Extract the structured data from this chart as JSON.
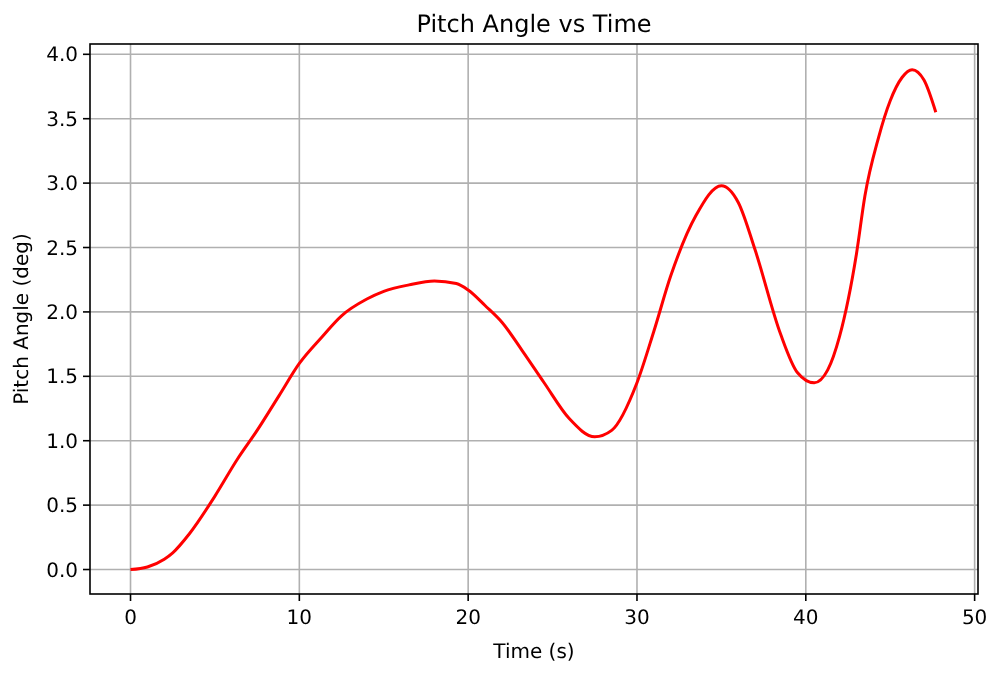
{
  "chart_data": {
    "type": "line",
    "title": "Pitch Angle vs Time",
    "xlabel": "Time (s)",
    "ylabel": "Pitch Angle (deg)",
    "xlim": [
      -2.4,
      50.2
    ],
    "ylim": [
      -0.19,
      4.08
    ],
    "xticks": [
      0,
      10,
      20,
      30,
      40,
      50
    ],
    "yticks": [
      {
        "value": 0,
        "label": "0.0"
      },
      {
        "value": 0.5,
        "label": "0.5"
      },
      {
        "value": 1,
        "label": "1.0"
      },
      {
        "value": 1.5,
        "label": "1.5"
      },
      {
        "value": 2,
        "label": "2.0"
      },
      {
        "value": 2.5,
        "label": "2.5"
      },
      {
        "value": 3,
        "label": "3.0"
      },
      {
        "value": 3.5,
        "label": "3.5"
      },
      {
        "value": 4,
        "label": "4.0"
      }
    ],
    "grid": true,
    "x": [
      0,
      1,
      2,
      2.5,
      3.5,
      5,
      6.3,
      7.5,
      8.8,
      10,
      11.3,
      12.5,
      14,
      15,
      16.5,
      18,
      19.3,
      20,
      21,
      22,
      23.2,
      24.5,
      26,
      27.5,
      28.5,
      30,
      31,
      32,
      33.5,
      35,
      36,
      37,
      38.5,
      39.5,
      40.5,
      41.3,
      42,
      43,
      43.5,
      44.3,
      45,
      45.7,
      46.3,
      47,
      47.7
    ],
    "series": [
      {
        "color": "#ff0000",
        "values": [
          0,
          0.02,
          0.08,
          0.13,
          0.28,
          0.57,
          0.85,
          1.08,
          1.35,
          1.6,
          1.8,
          1.97,
          2.1,
          2.16,
          2.21,
          2.24,
          2.22,
          2.17,
          2.05,
          1.92,
          1.7,
          1.45,
          1.17,
          1.03,
          1.08,
          1.45,
          1.85,
          2.28,
          2.75,
          2.98,
          2.85,
          2.48,
          1.83,
          1.53,
          1.45,
          1.55,
          1.81,
          2.45,
          2.9,
          3.35,
          3.64,
          3.82,
          3.88,
          3.8,
          3.55
        ]
      }
    ]
  }
}
